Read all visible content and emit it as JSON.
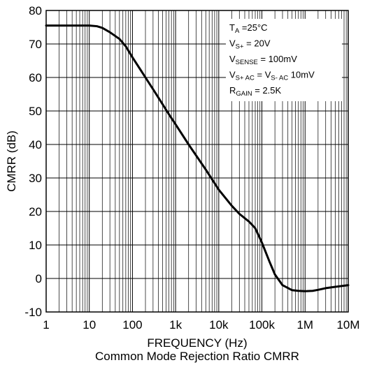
{
  "chart_data": {
    "type": "line",
    "title": "Common Mode Rejection Ratio CMRR",
    "xlabel": "FREQUENCY (Hz)",
    "ylabel": "CMRR (dB)",
    "xscale": "log",
    "xlim": [
      1,
      10000000
    ],
    "ylim": [
      -10,
      80
    ],
    "grid": true,
    "x_ticks": [
      1,
      10,
      100,
      1000,
      10000,
      100000,
      1000000,
      10000000
    ],
    "x_tick_labels": [
      "1",
      "10",
      "100",
      "1k",
      "10k",
      "100k",
      "1M",
      "10M"
    ],
    "y_ticks": [
      -10,
      0,
      10,
      20,
      30,
      40,
      50,
      60,
      70,
      80
    ],
    "y_tick_labels": [
      "-10",
      "0",
      "10",
      "20",
      "30",
      "40",
      "50",
      "60",
      "70",
      "80"
    ],
    "annotation_position": "top-right",
    "annotation_lines": [
      [
        {
          "t": "T"
        },
        {
          "t": "A",
          "sub": true
        },
        {
          "t": " =25°C"
        }
      ],
      [
        {
          "t": "V"
        },
        {
          "t": "S+",
          "sub": true
        },
        {
          "t": " = 20V"
        }
      ],
      [
        {
          "t": "V"
        },
        {
          "t": "SENSE",
          "sub": true
        },
        {
          "t": " = 100mV"
        }
      ],
      [
        {
          "t": "V"
        },
        {
          "t": "S+ AC",
          "sub": true
        },
        {
          "t": " = V"
        },
        {
          "t": "S- AC",
          "sub": true
        },
        {
          "t": " 10mV"
        }
      ],
      [
        {
          "t": "R"
        },
        {
          "t": "GAIN",
          "sub": true
        },
        {
          "t": " = 2.5K"
        }
      ]
    ],
    "series": [
      {
        "color": "#000000",
        "x": [
          1,
          5,
          10,
          15,
          20,
          30,
          50,
          70,
          100,
          150,
          200,
          300,
          500,
          700,
          1000,
          2000,
          5000,
          10000,
          20000,
          30000,
          50000,
          70000,
          100000,
          150000,
          200000,
          300000,
          500000,
          700000,
          1000000,
          1500000,
          2000000,
          3000000,
          5000000,
          10000000
        ],
        "y": [
          75.5,
          75.5,
          75.5,
          75.3,
          74.8,
          73.5,
          71.5,
          69.3,
          66,
          62.5,
          60,
          56.5,
          52,
          49,
          46,
          40,
          32.5,
          26.5,
          21.7,
          19.3,
          17,
          15,
          10.7,
          5,
          1.2,
          -2,
          -3.5,
          -3.7,
          -3.8,
          -3.7,
          -3.4,
          -2.9,
          -2.5,
          -2
        ]
      }
    ]
  }
}
